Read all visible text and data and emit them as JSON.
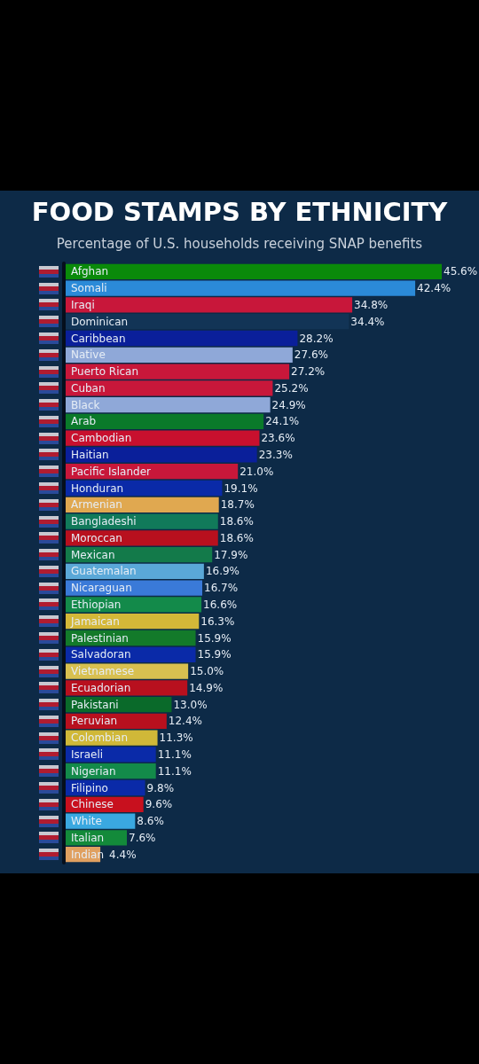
{
  "chart_data": {
    "type": "bar",
    "orientation": "horizontal",
    "title": "FOOD STAMPS BY ETHNICITY",
    "subtitle": "Percentage of U.S. households receiving SNAP benefits",
    "tick_labels": "y",
    "categories": [
      "Afghan",
      "Somali",
      "Iraqi",
      "Dominican",
      "Caribbean",
      "Native",
      "Puerto Rican",
      "Cuban",
      "Black",
      "Arab",
      "Cambodian",
      "Haitian",
      "Pacific Islander",
      "Honduran",
      "Armenian",
      "Bangladeshi",
      "Moroccan",
      "Mexican",
      "Guatemalan",
      "Nicaraguan",
      "Ethiopian",
      "Jamaican",
      "Palestinian",
      "Salvadoran",
      "Vietnamese",
      "Ecuadorian",
      "Pakistani",
      "Peruvian",
      "Colombian",
      "Israeli",
      "Nigerian",
      "Filipino",
      "Chinese",
      "White",
      "Italian",
      "Indian"
    ],
    "values": [
      45.6,
      42.4,
      34.8,
      34.4,
      28.2,
      27.6,
      27.2,
      25.2,
      24.9,
      24.1,
      23.6,
      23.3,
      21.0,
      19.1,
      18.7,
      18.6,
      18.6,
      17.9,
      16.9,
      16.7,
      16.6,
      16.3,
      15.9,
      15.9,
      15.0,
      14.9,
      13.0,
      12.4,
      11.3,
      11.1,
      11.1,
      9.8,
      9.6,
      8.6,
      7.6,
      4.4
    ],
    "value_labels": [
      "45.6%",
      "42.4%",
      "34.8%",
      "34.4%",
      "28.2%",
      "27.6%",
      "27.2%",
      "25.2%",
      "24.9%",
      "24.1%",
      "23.6%",
      "23.3%",
      "21.0%",
      "19.1%",
      "18.7%",
      "18.6%",
      "18.6%",
      "17.9%",
      "16.9%",
      "16.7%",
      "16.6%",
      "16.3%",
      "15.9%",
      "15.9%",
      "15.0%",
      "14.9%",
      "13.0%",
      "12.4%",
      "11.3%",
      "11.1%",
      "11.1%",
      "9.8%",
      "9.6%",
      "8.6%",
      "7.6%",
      "4.4%"
    ],
    "colors": [
      "#0a8a0a",
      "#2b8ad8",
      "#c8173a",
      "#123456",
      "#0a1f9a",
      "#8fa8d8",
      "#c8173a",
      "#c8173a",
      "#8fa8d8",
      "#0a7a2a",
      "#c8102e",
      "#0a1f9a",
      "#c8173a",
      "#0a2aa8",
      "#e0a850",
      "#117a5a",
      "#b8101e",
      "#137a4a",
      "#5aa8d8",
      "#3a7ad8",
      "#138a4a",
      "#d4b838",
      "#137a2a",
      "#0a2aa8",
      "#d8c050",
      "#b8101e",
      "#0a6a2a",
      "#b8101e",
      "#d0b838",
      "#0a2aa8",
      "#138a4a",
      "#0a2aa8",
      "#c8101e",
      "#3aa8e0",
      "#138a3a",
      "#e0a060"
    ]
  }
}
